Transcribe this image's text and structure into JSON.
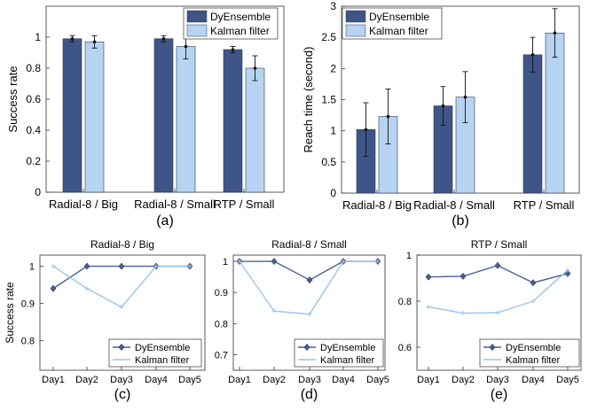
{
  "colors": {
    "dark": "#3f5587",
    "light": "#b6d3f1",
    "axis": "#333333",
    "line_dark": "#4b5f92",
    "line_light": "#9cc4ea"
  },
  "chart_data": [
    {
      "id": "a",
      "type": "bar",
      "panel_label": "(a)",
      "ylabel": "Success rate",
      "categories": [
        "Radial-8 / Big",
        "Radial-8 / Small",
        "RTP / Small"
      ],
      "yticks": [
        "0",
        "0.2",
        "0.4",
        "0.6",
        "0.8",
        "1"
      ],
      "ylim": [
        0,
        1.2
      ],
      "legend": "top-right",
      "series": [
        {
          "name": "DyEnsemble",
          "values": [
            0.99,
            0.99,
            0.92
          ],
          "err": [
            0.02,
            0.02,
            0.02
          ]
        },
        {
          "name": "Kalman filter",
          "values": [
            0.97,
            0.94,
            0.8
          ],
          "err": [
            0.04,
            0.08,
            0.08
          ]
        }
      ]
    },
    {
      "id": "b",
      "type": "bar",
      "panel_label": "(b)",
      "ylabel": "Reach time (second)",
      "categories": [
        "Radial-8 / Big",
        "Radial-8 / Small",
        "RTP / Small"
      ],
      "yticks": [
        "0",
        "0.5",
        "1",
        "1.5",
        "2",
        "2.5",
        "3"
      ],
      "ylim": [
        0,
        3
      ],
      "legend": "top-left",
      "series": [
        {
          "name": "DyEnsemble",
          "values": [
            1.02,
            1.4,
            2.22
          ],
          "err": [
            0.43,
            0.31,
            0.28
          ]
        },
        {
          "name": "Kalman filter",
          "values": [
            1.23,
            1.54,
            2.57
          ],
          "err": [
            0.44,
            0.41,
            0.39
          ]
        }
      ]
    },
    {
      "id": "c",
      "type": "line",
      "panel_label": "(c)",
      "title": "Radial-8 / Big",
      "ylabel": "Success rate",
      "categories": [
        "Day1",
        "Day2",
        "Day3",
        "Day4",
        "Day5"
      ],
      "yticks": [
        "0.8",
        "0.9",
        "1"
      ],
      "ylim": [
        0.72,
        1.03
      ],
      "legend": "bottom-right",
      "series": [
        {
          "name": "DyEnsemble",
          "values": [
            0.94,
            1.0,
            1.0,
            1.0,
            1.0
          ]
        },
        {
          "name": "Kalman filter",
          "values": [
            1.0,
            0.94,
            0.89,
            1.0,
            1.0
          ]
        }
      ]
    },
    {
      "id": "d",
      "type": "line",
      "panel_label": "(d)",
      "title": "Radial-8 / Small",
      "categories": [
        "Day1",
        "Day2",
        "Day3",
        "Day4",
        "Day5"
      ],
      "yticks": [
        "0.7",
        "0.8",
        "0.9",
        "1"
      ],
      "ylim": [
        0.65,
        1.02
      ],
      "legend": "bottom-right",
      "series": [
        {
          "name": "DyEnsemble",
          "values": [
            1.0,
            1.0,
            0.94,
            1.0,
            1.0
          ]
        },
        {
          "name": "Kalman filter",
          "values": [
            1.0,
            0.84,
            0.83,
            1.0,
            1.0
          ]
        }
      ]
    },
    {
      "id": "e",
      "type": "line",
      "panel_label": "(e)",
      "title": "RTP / Small",
      "categories": [
        "Day1",
        "Day2",
        "Day3",
        "Day4",
        "Day5"
      ],
      "yticks": [
        "0.6",
        "0.8",
        "1"
      ],
      "ylim": [
        0.5,
        1.0
      ],
      "legend": "bottom-right",
      "series": [
        {
          "name": "DyEnsemble",
          "values": [
            0.905,
            0.908,
            0.955,
            0.88,
            0.92
          ]
        },
        {
          "name": "Kalman filter",
          "values": [
            0.775,
            0.748,
            0.75,
            0.8,
            0.935
          ]
        }
      ]
    }
  ]
}
